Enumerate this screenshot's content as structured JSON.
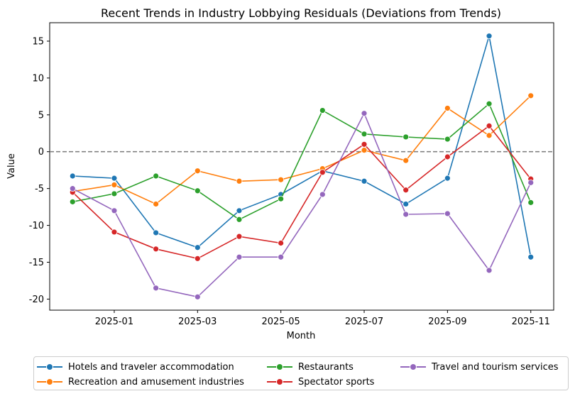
{
  "chart_data": {
    "type": "line",
    "title": "Recent Trends in Industry Lobbying Residuals (Deviations from Trends)",
    "xlabel": "Month",
    "ylabel": "Value",
    "x": [
      "2024-12",
      "2025-01",
      "2025-02",
      "2025-03",
      "2025-04",
      "2025-05",
      "2025-06",
      "2025-07",
      "2025-08",
      "2025-09",
      "2025-10",
      "2025-11"
    ],
    "x_ticks": [
      "2025-01",
      "2025-03",
      "2025-05",
      "2025-07",
      "2025-09",
      "2025-11"
    ],
    "y_ticks": [
      -20,
      -15,
      -10,
      -5,
      0,
      5,
      10,
      15
    ],
    "ylim": [
      -21.5,
      17.5
    ],
    "reference_line": 0,
    "grid": false,
    "legend_position": "bottom-center",
    "series": [
      {
        "name": "Hotels and traveler accommodation",
        "color": "#1f77b4",
        "values": [
          -3.3,
          -3.6,
          -11.0,
          -13.0,
          -8.0,
          -5.8,
          -2.6,
          -4.0,
          -7.1,
          -3.6,
          15.7,
          -14.3
        ]
      },
      {
        "name": "Recreation and amusement industries",
        "color": "#ff7f0e",
        "values": [
          -5.4,
          -4.5,
          -7.1,
          -2.6,
          -4.0,
          -3.8,
          -2.3,
          0.2,
          -1.2,
          5.9,
          2.2,
          7.6
        ]
      },
      {
        "name": "Restaurants",
        "color": "#2ca02c",
        "values": [
          -6.8,
          -5.7,
          -3.3,
          -5.3,
          -9.2,
          -6.4,
          5.6,
          2.4,
          2.0,
          1.7,
          6.5,
          -6.9
        ]
      },
      {
        "name": "Spectator sports",
        "color": "#d62728",
        "values": [
          -5.5,
          -10.9,
          -13.2,
          -14.5,
          -11.5,
          -12.4,
          -2.8,
          1.0,
          -5.2,
          -0.7,
          3.5,
          -3.7
        ]
      },
      {
        "name": "Travel and tourism services",
        "color": "#9467bd",
        "values": [
          -5.0,
          -8.0,
          -18.5,
          -19.7,
          -14.3,
          -14.3,
          -5.8,
          5.2,
          -8.5,
          -8.4,
          -16.1,
          -4.2
        ]
      }
    ]
  }
}
